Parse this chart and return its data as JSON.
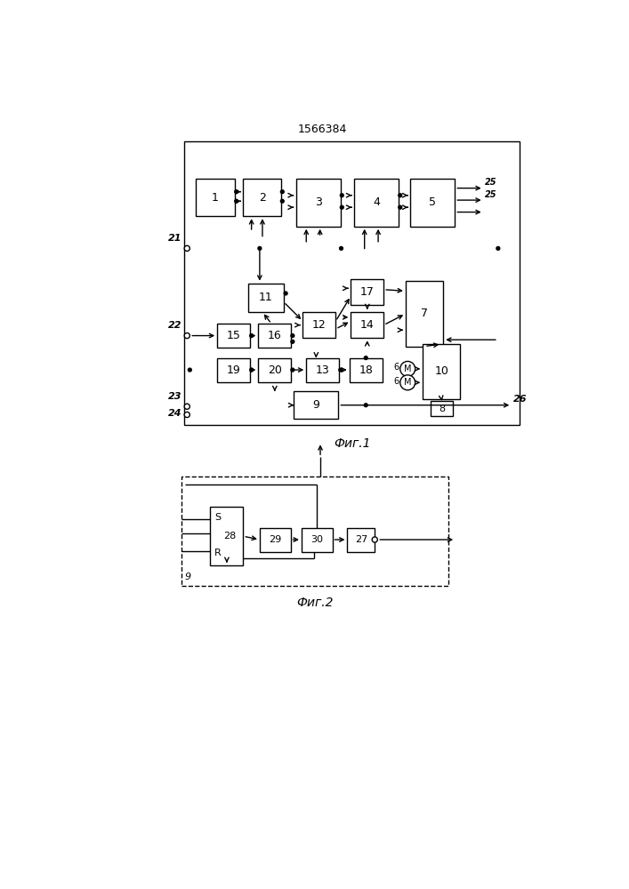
{
  "title": "1566384",
  "fig1_caption": "Фиг.1",
  "fig2_caption": "Фиг.2",
  "bg_color": "#ffffff",
  "line_color": "#000000",
  "lw": 1.0
}
